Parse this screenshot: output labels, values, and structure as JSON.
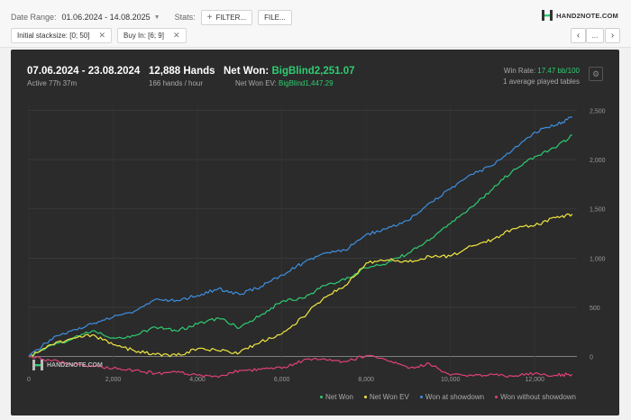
{
  "toolbar": {
    "date_range_label": "Date Range:",
    "date_range_value": "01.06.2024 - 14.08.2025",
    "stats_label": "Stats:",
    "filter_label": "FILTER...",
    "file_label": "FILE..."
  },
  "chips": [
    {
      "label": "Initial stacksize: [0; 50]"
    },
    {
      "label": "Buy In: [6; 9]"
    }
  ],
  "logo_text": "HAND2NOTE.COM",
  "nav": {
    "prev": "‹",
    "more": "...",
    "next": "›"
  },
  "summary": {
    "period": "07.06.2024 - 23.08.2024",
    "active": "Active 77h 37m",
    "hands": "12,888 Hands",
    "hands_rate": "166 hands / hour",
    "net_won_label": "Net Won:",
    "net_won_value": "BigBlind2,251.07",
    "net_won_ev_label": "Net Won EV:",
    "net_won_ev_value": "BigBlind1,447.29",
    "win_rate_label": "Win Rate:",
    "win_rate_value": "17.47 bb/100",
    "tables_note": "1 average played tables"
  },
  "watermark": "HAND2NOTE.COM",
  "chart_data": {
    "type": "line",
    "x_ticks": [
      "0",
      "2,000",
      "4,000",
      "6,000",
      "8,000",
      "10,000",
      "12,000"
    ],
    "y_ticks": [
      "0",
      "500",
      "1,000",
      "1,500",
      "2,000",
      "2,500"
    ],
    "xlim": [
      0,
      13000
    ],
    "ylim": [
      -150,
      2550
    ],
    "grid": true,
    "legend": "bottom-right",
    "x": [
      0,
      500,
      1000,
      1500,
      2000,
      2500,
      3000,
      3500,
      4000,
      4500,
      5000,
      5500,
      6000,
      6500,
      7000,
      7500,
      8000,
      8500,
      9000,
      9500,
      10000,
      10500,
      11000,
      11500,
      12000,
      12500,
      12888
    ],
    "series": [
      {
        "name": "Net Won",
        "color": "#2ecc71",
        "values": [
          0,
          110,
          170,
          260,
          190,
          210,
          300,
          260,
          330,
          390,
          290,
          420,
          560,
          590,
          720,
          780,
          900,
          950,
          1050,
          1180,
          1350,
          1520,
          1700,
          1900,
          2030,
          2120,
          2251
        ]
      },
      {
        "name": "Net Won EV",
        "color": "#f1e740",
        "values": [
          0,
          120,
          180,
          220,
          120,
          60,
          20,
          10,
          80,
          60,
          40,
          150,
          230,
          400,
          600,
          720,
          950,
          980,
          960,
          1020,
          1020,
          1120,
          1190,
          1300,
          1330,
          1410,
          1447
        ]
      },
      {
        "name": "Won at showdown",
        "color": "#3d8fe0",
        "values": [
          0,
          170,
          260,
          330,
          400,
          460,
          580,
          570,
          620,
          690,
          630,
          710,
          830,
          950,
          1050,
          1080,
          1240,
          1300,
          1380,
          1560,
          1700,
          1850,
          1940,
          2110,
          2280,
          2350,
          2430
        ]
      },
      {
        "name": "Won without showdown",
        "color": "#e0407a",
        "values": [
          0,
          -40,
          -80,
          -100,
          -120,
          -140,
          -170,
          -160,
          -190,
          -210,
          -140,
          -130,
          -120,
          -40,
          -20,
          -50,
          10,
          -40,
          -120,
          -70,
          -190,
          -190,
          -180,
          -200,
          -170,
          -190,
          -180
        ]
      }
    ]
  }
}
